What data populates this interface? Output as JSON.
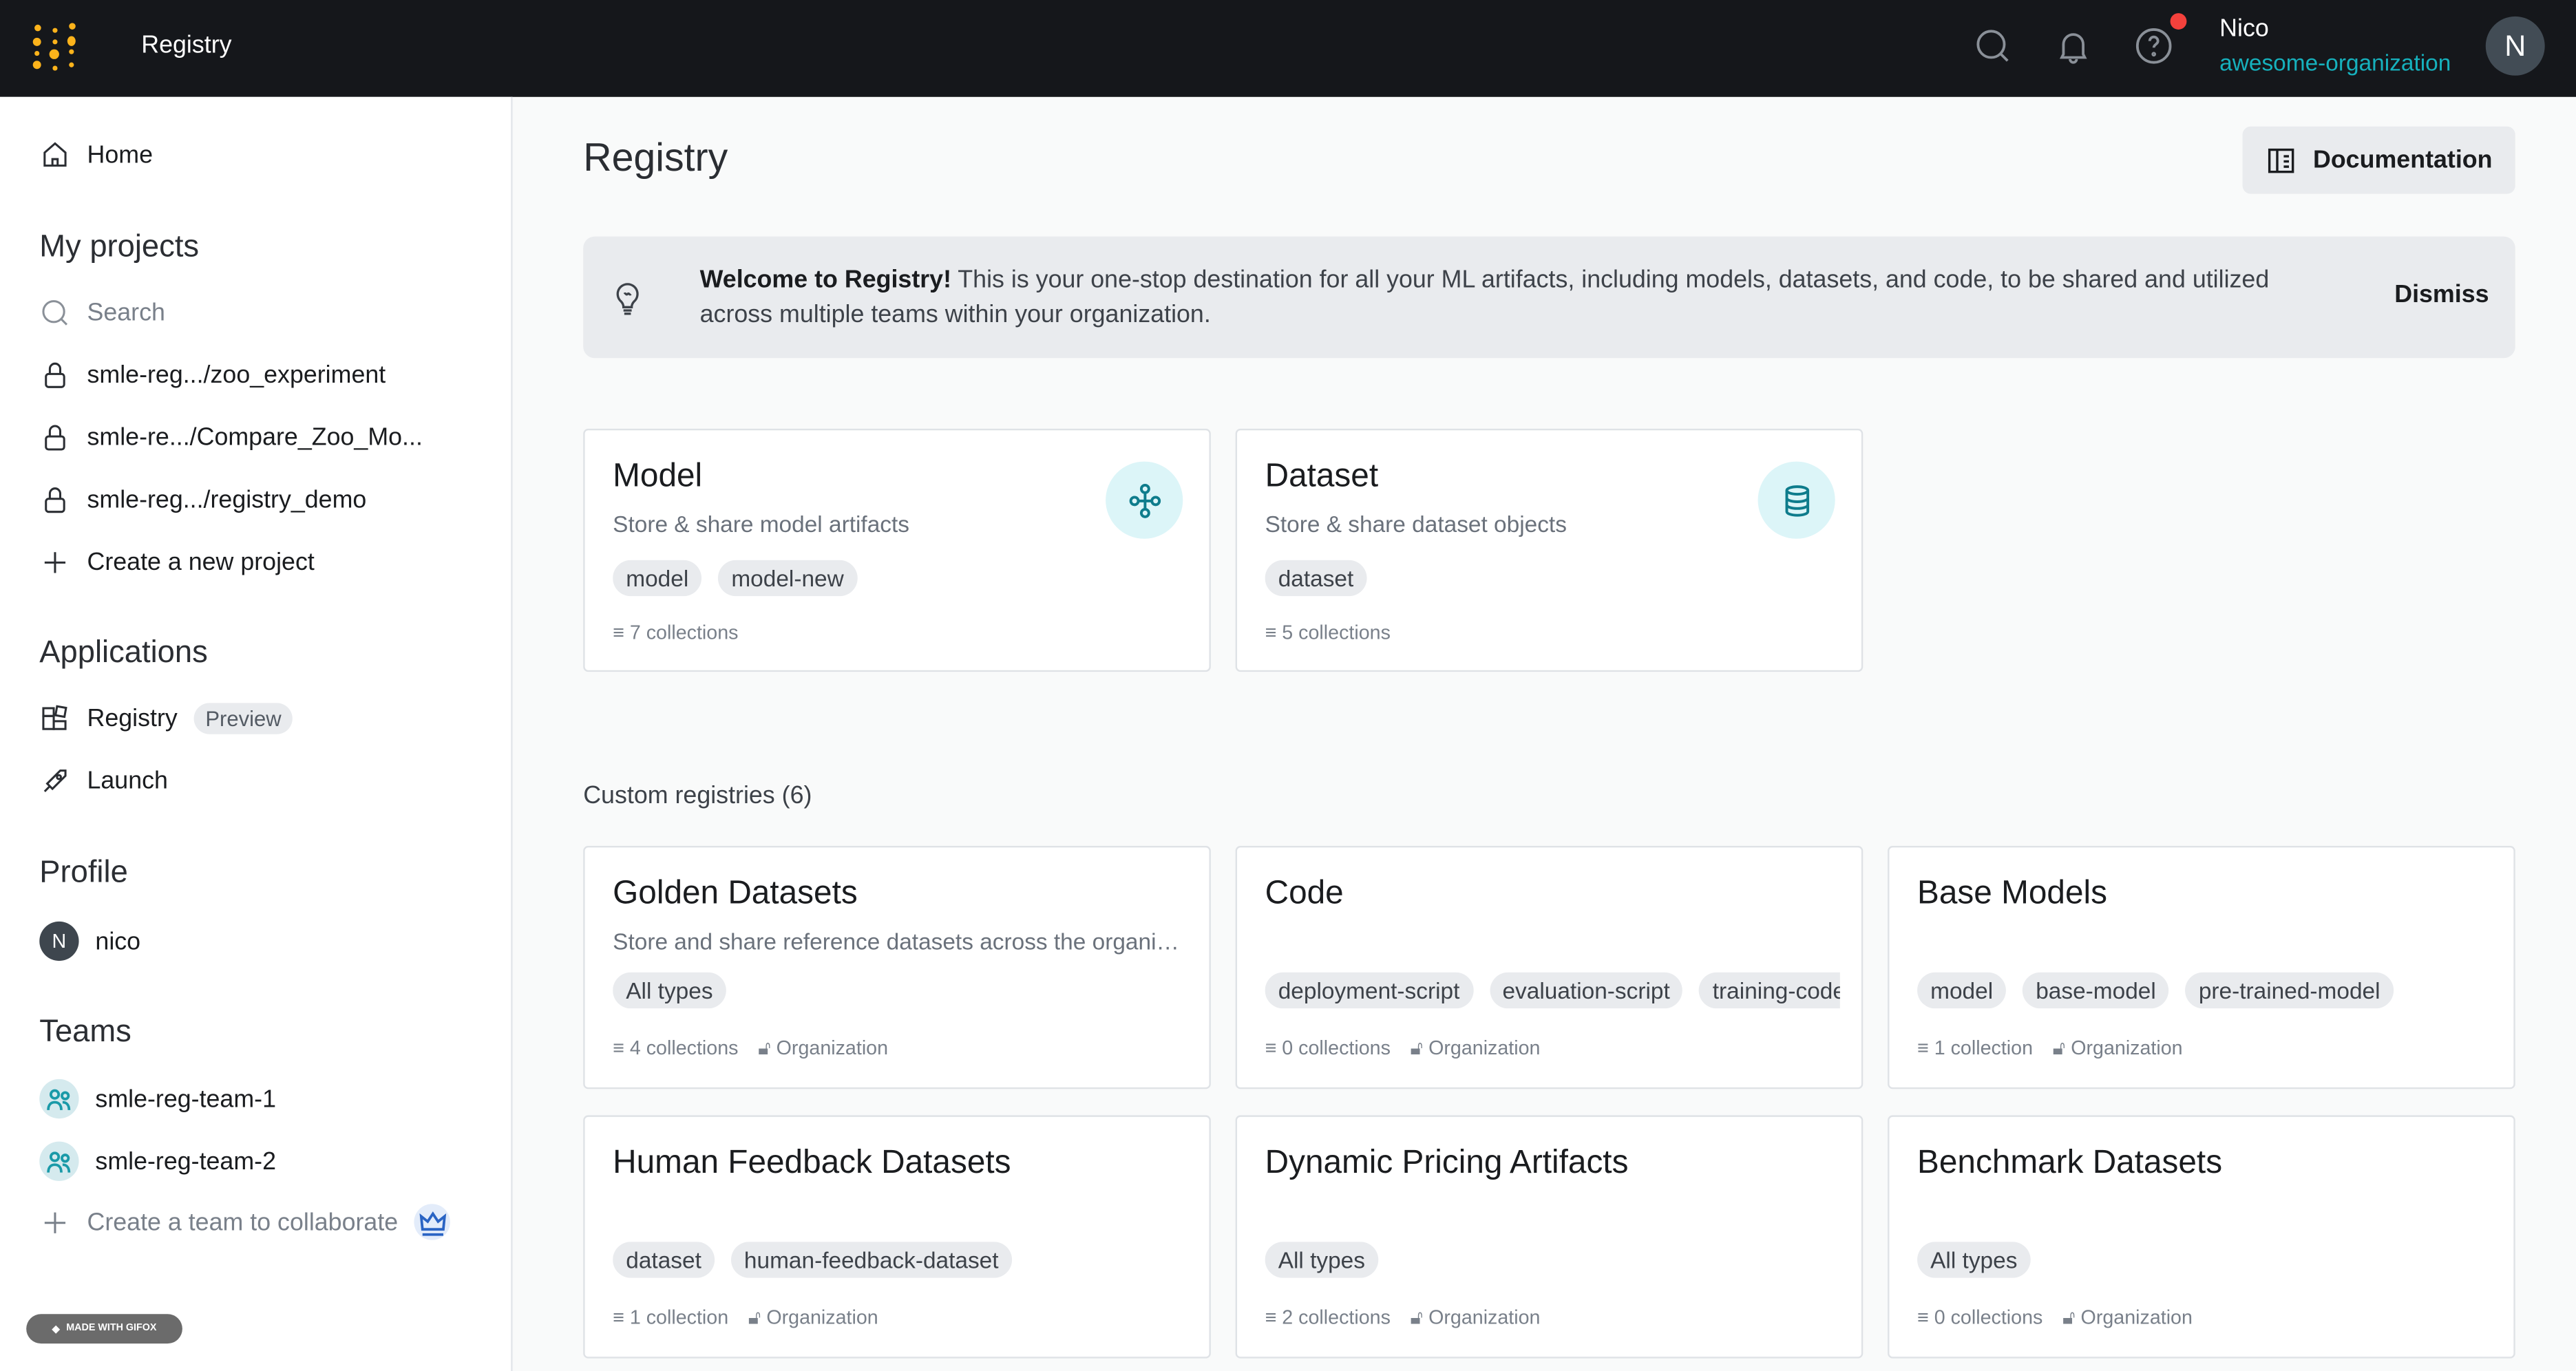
{
  "topbar": {
    "title": "Registry",
    "user_name": "Nico",
    "org": "awesome-organization",
    "avatar_initial": "N"
  },
  "sidebar": {
    "home": "Home",
    "my_projects": "My projects",
    "search_placeholder": "Search",
    "projects": [
      "smle-reg.../zoo_experiment",
      "smle-re.../Compare_Zoo_Mo...",
      "smle-reg.../registry_demo"
    ],
    "create_project": "Create a new project",
    "applications": "Applications",
    "registry": "Registry",
    "preview": "Preview",
    "launch": "Launch",
    "profile": "Profile",
    "profile_initial": "N",
    "profile_name": "nico",
    "teams": "Teams",
    "team_items": [
      "smle-reg-team-1",
      "smle-reg-team-2"
    ],
    "create_team": "Create a team to collaborate",
    "watermark": "MADE WITH GIFOX"
  },
  "main": {
    "title": "Registry",
    "documentation": "Documentation",
    "banner": {
      "bold": "Welcome to Registry!",
      "text": " This is your one-stop destination for all your ML artifacts, including models, datasets, and code, to be shared and utilized across multiple teams within your organization.",
      "dismiss": "Dismiss"
    },
    "core": [
      {
        "title": "Model",
        "desc": "Store & share model artifacts",
        "tags": [
          "model",
          "model-new"
        ],
        "count": "7 collections",
        "icon": "model-graph-icon"
      },
      {
        "title": "Dataset",
        "desc": "Store & share dataset objects",
        "tags": [
          "dataset"
        ],
        "count": "5 collections",
        "icon": "database-icon"
      }
    ],
    "custom_header": "Custom registries (6)",
    "custom": [
      {
        "title": "Golden Datasets",
        "desc": "Store and share reference datasets across the organization",
        "tags": [
          "All types"
        ],
        "count": "4 collections",
        "vis": "Organization"
      },
      {
        "title": "Code",
        "desc": "",
        "tags": [
          "deployment-script",
          "evaluation-script",
          "training-code"
        ],
        "count": "0 collections",
        "vis": "Organization"
      },
      {
        "title": "Base Models",
        "desc": "",
        "tags": [
          "model",
          "base-model",
          "pre-trained-model"
        ],
        "count": "1 collection",
        "vis": "Organization"
      },
      {
        "title": "Human Feedback Datasets",
        "desc": "",
        "tags": [
          "dataset",
          "human-feedback-dataset"
        ],
        "count": "1 collection",
        "vis": "Organization"
      },
      {
        "title": "Dynamic Pricing Artifacts",
        "desc": "",
        "tags": [
          "All types"
        ],
        "count": "2 collections",
        "vis": "Organization"
      },
      {
        "title": "Benchmark Datasets",
        "desc": "",
        "tags": [
          "All types"
        ],
        "count": "0 collections",
        "vis": "Organization"
      }
    ],
    "colors": {
      "accent": "#16b1bd",
      "topbar": "#15171b",
      "logo": "#fcb31b",
      "notification": "#f4413c"
    }
  }
}
